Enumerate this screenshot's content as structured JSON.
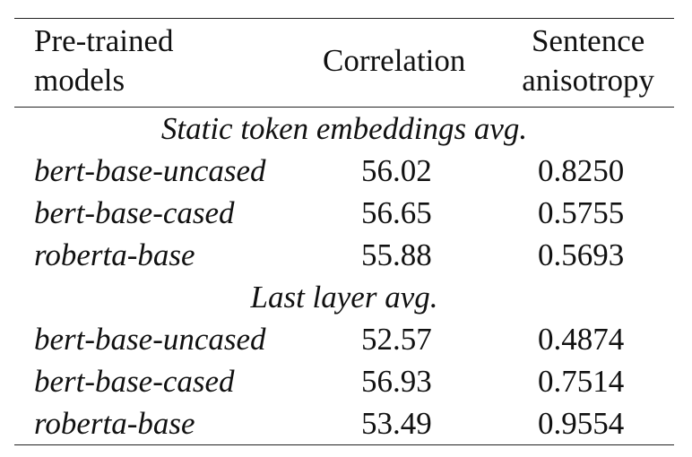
{
  "table": {
    "header": {
      "models_line1": "Pre-trained",
      "models_line2": "models",
      "correlation": "Correlation",
      "anisotropy_line1": "Sentence",
      "anisotropy_line2": "anisotropy"
    },
    "sections": [
      {
        "title": "Static token embeddings avg.",
        "rows": [
          {
            "model": "bert-base-uncased",
            "correlation": "56.02",
            "anisotropy": "0.8250"
          },
          {
            "model": "bert-base-cased",
            "correlation": "56.65",
            "anisotropy": "0.5755"
          },
          {
            "model": "roberta-base",
            "correlation": "55.88",
            "anisotropy": "0.5693"
          }
        ]
      },
      {
        "title": "Last layer avg.",
        "rows": [
          {
            "model": "bert-base-uncased",
            "correlation": "52.57",
            "anisotropy": "0.4874"
          },
          {
            "model": "bert-base-cased",
            "correlation": "56.93",
            "anisotropy": "0.7514"
          },
          {
            "model": "roberta-base",
            "correlation": "53.49",
            "anisotropy": "0.9554"
          }
        ]
      }
    ]
  }
}
